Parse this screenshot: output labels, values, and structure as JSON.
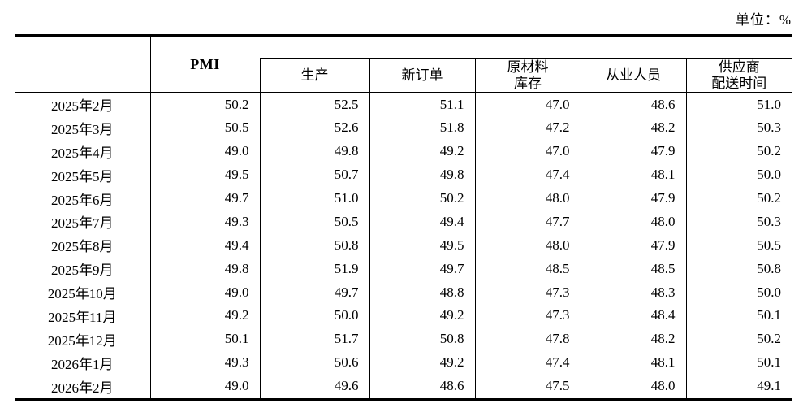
{
  "unit_label": "单位：%",
  "table": {
    "pmi_header": "PMI",
    "sub_headers": [
      [
        "生产"
      ],
      [
        "新订单"
      ],
      [
        "原材料",
        "库存"
      ],
      [
        "从业人员"
      ],
      [
        "供应商",
        "配送时间"
      ]
    ]
  },
  "chart_data": {
    "type": "table",
    "unit": "%",
    "columns": [
      "PMI",
      "生产",
      "新订单",
      "原材料库存",
      "从业人员",
      "供应商配送时间"
    ],
    "periods": [
      "2025年2月",
      "2025年3月",
      "2025年4月",
      "2025年5月",
      "2025年6月",
      "2025年7月",
      "2025年8月",
      "2025年9月",
      "2025年10月",
      "2025年11月",
      "2025年12月",
      "2026年1月",
      "2026年2月"
    ],
    "series": [
      {
        "name": "PMI",
        "values": [
          50.2,
          50.5,
          49.0,
          49.5,
          49.7,
          49.3,
          49.4,
          49.8,
          49.0,
          49.2,
          50.1,
          49.3,
          49.0
        ]
      },
      {
        "name": "生产",
        "values": [
          52.5,
          52.6,
          49.8,
          50.7,
          51.0,
          50.5,
          50.8,
          51.9,
          49.7,
          50.0,
          51.7,
          50.6,
          49.6
        ]
      },
      {
        "name": "新订单",
        "values": [
          51.1,
          51.8,
          49.2,
          49.8,
          50.2,
          49.4,
          49.5,
          49.7,
          48.8,
          49.2,
          50.8,
          49.2,
          48.6
        ]
      },
      {
        "name": "原材料库存",
        "values": [
          47.0,
          47.2,
          47.0,
          47.4,
          48.0,
          47.7,
          48.0,
          48.5,
          47.3,
          47.3,
          47.8,
          47.4,
          47.5
        ]
      },
      {
        "name": "从业人员",
        "values": [
          48.6,
          48.2,
          47.9,
          48.1,
          47.9,
          48.0,
          47.9,
          48.5,
          48.3,
          48.4,
          48.2,
          48.1,
          48.0
        ]
      },
      {
        "name": "供应商配送时间",
        "values": [
          51.0,
          50.3,
          50.2,
          50.0,
          50.2,
          50.3,
          50.5,
          50.8,
          50.0,
          50.1,
          50.2,
          50.1,
          49.1
        ]
      }
    ]
  }
}
